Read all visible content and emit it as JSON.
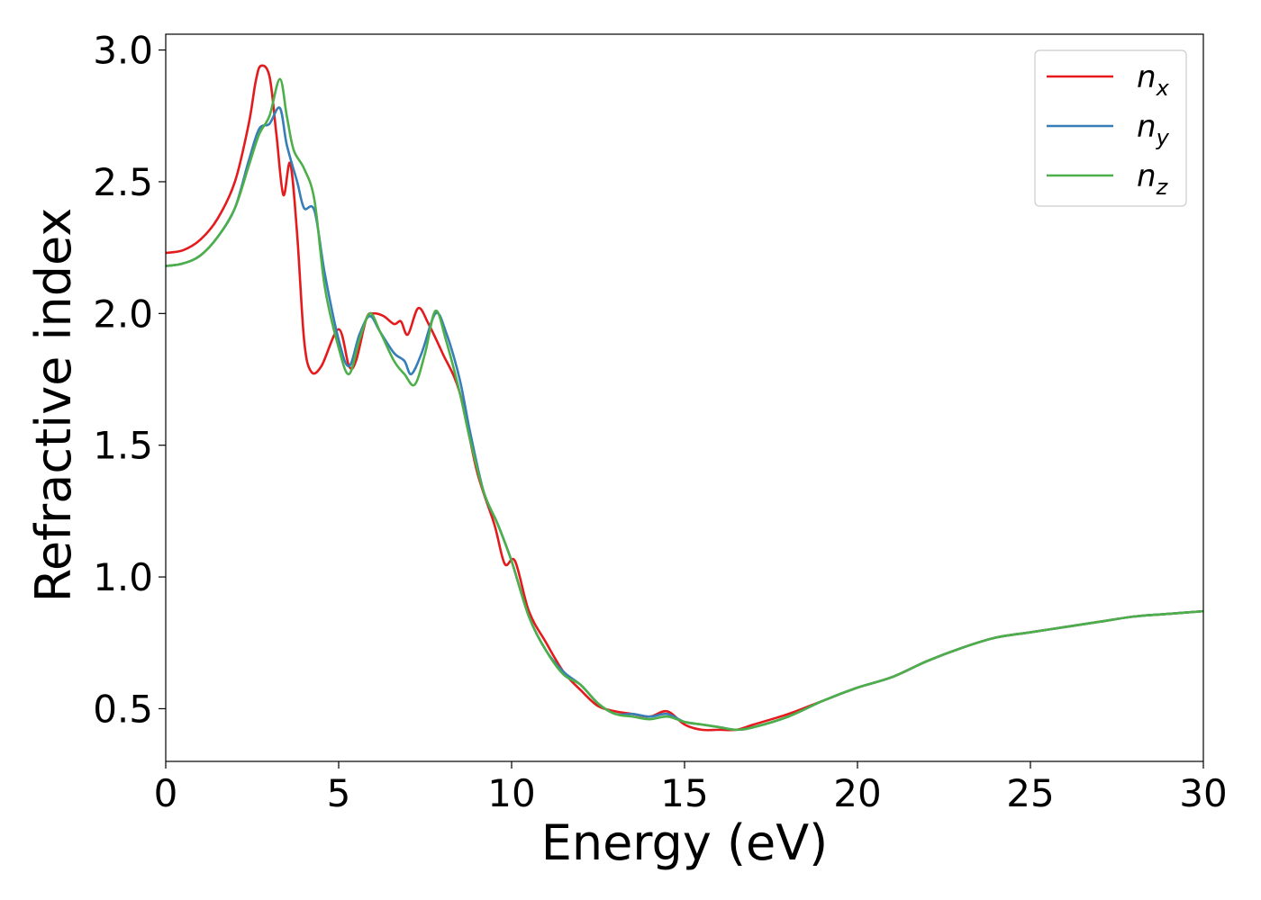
{
  "chart_data": {
    "type": "line",
    "title": "",
    "xlabel": "Energy (eV)",
    "ylabel": "Refractive index",
    "xlim": [
      0,
      30
    ],
    "ylim": [
      0.3,
      3.06
    ],
    "xticks": [
      0,
      5,
      10,
      15,
      20,
      25,
      30
    ],
    "xtick_labels": [
      "0",
      "5",
      "10",
      "15",
      "20",
      "25",
      "30"
    ],
    "yticks": [
      0.5,
      1.0,
      1.5,
      2.0,
      2.5,
      3.0
    ],
    "ytick_labels": [
      "0.5",
      "1.0",
      "1.5",
      "2.0",
      "2.5",
      "3.0"
    ],
    "grid": false,
    "legend_position": "top-right",
    "series": [
      {
        "name": "n_x",
        "label_base": "n",
        "label_sub": "x",
        "color": "#e41a1c",
        "points": [
          [
            0,
            2.23
          ],
          [
            0.5,
            2.24
          ],
          [
            1.0,
            2.28
          ],
          [
            1.5,
            2.36
          ],
          [
            2.0,
            2.5
          ],
          [
            2.4,
            2.72
          ],
          [
            2.6,
            2.88
          ],
          [
            2.75,
            2.94
          ],
          [
            3.0,
            2.9
          ],
          [
            3.2,
            2.68
          ],
          [
            3.4,
            2.45
          ],
          [
            3.6,
            2.57
          ],
          [
            3.8,
            2.3
          ],
          [
            4.0,
            1.9
          ],
          [
            4.2,
            1.78
          ],
          [
            4.5,
            1.8
          ],
          [
            5.0,
            1.94
          ],
          [
            5.3,
            1.8
          ],
          [
            5.5,
            1.82
          ],
          [
            5.8,
            1.98
          ],
          [
            6.0,
            2.0
          ],
          [
            6.3,
            1.99
          ],
          [
            6.6,
            1.96
          ],
          [
            6.8,
            1.97
          ],
          [
            7.0,
            1.92
          ],
          [
            7.3,
            2.02
          ],
          [
            7.6,
            1.96
          ],
          [
            8.0,
            1.85
          ],
          [
            8.5,
            1.7
          ],
          [
            9.0,
            1.4
          ],
          [
            9.5,
            1.2
          ],
          [
            9.8,
            1.05
          ],
          [
            10.1,
            1.06
          ],
          [
            10.5,
            0.87
          ],
          [
            11.0,
            0.75
          ],
          [
            11.5,
            0.64
          ],
          [
            12.0,
            0.57
          ],
          [
            12.5,
            0.51
          ],
          [
            13.0,
            0.49
          ],
          [
            13.5,
            0.48
          ],
          [
            14.0,
            0.47
          ],
          [
            14.5,
            0.49
          ],
          [
            15.0,
            0.44
          ],
          [
            15.5,
            0.42
          ],
          [
            16.0,
            0.42
          ],
          [
            16.5,
            0.42
          ],
          [
            17.0,
            0.44
          ],
          [
            18.0,
            0.48
          ],
          [
            19.0,
            0.53
          ],
          [
            20.0,
            0.58
          ],
          [
            21.0,
            0.62
          ],
          [
            22.0,
            0.68
          ],
          [
            23.0,
            0.73
          ],
          [
            24.0,
            0.77
          ],
          [
            25.0,
            0.79
          ],
          [
            26.0,
            0.81
          ],
          [
            27.0,
            0.83
          ],
          [
            28.0,
            0.85
          ],
          [
            29.0,
            0.86
          ],
          [
            30.0,
            0.87
          ]
        ]
      },
      {
        "name": "n_y",
        "label_base": "n",
        "label_sub": "y",
        "color": "#377eb8",
        "points": [
          [
            0,
            2.18
          ],
          [
            0.5,
            2.19
          ],
          [
            1.0,
            2.22
          ],
          [
            1.5,
            2.29
          ],
          [
            2.0,
            2.4
          ],
          [
            2.4,
            2.58
          ],
          [
            2.7,
            2.7
          ],
          [
            3.0,
            2.72
          ],
          [
            3.3,
            2.78
          ],
          [
            3.5,
            2.64
          ],
          [
            3.8,
            2.5
          ],
          [
            4.0,
            2.4
          ],
          [
            4.3,
            2.39
          ],
          [
            4.6,
            2.15
          ],
          [
            5.0,
            1.9
          ],
          [
            5.3,
            1.8
          ],
          [
            5.6,
            1.92
          ],
          [
            5.9,
            1.99
          ],
          [
            6.2,
            1.93
          ],
          [
            6.6,
            1.85
          ],
          [
            6.9,
            1.82
          ],
          [
            7.1,
            1.77
          ],
          [
            7.4,
            1.85
          ],
          [
            7.8,
            2.0
          ],
          [
            8.1,
            1.93
          ],
          [
            8.5,
            1.75
          ],
          [
            8.8,
            1.55
          ],
          [
            9.2,
            1.32
          ],
          [
            9.6,
            1.2
          ],
          [
            10.0,
            1.06
          ],
          [
            10.5,
            0.85
          ],
          [
            11.0,
            0.72
          ],
          [
            11.5,
            0.64
          ],
          [
            12.0,
            0.59
          ],
          [
            12.5,
            0.52
          ],
          [
            13.0,
            0.48
          ],
          [
            13.5,
            0.48
          ],
          [
            14.0,
            0.47
          ],
          [
            14.5,
            0.48
          ],
          [
            15.0,
            0.45
          ],
          [
            15.5,
            0.44
          ],
          [
            16.0,
            0.43
          ],
          [
            16.5,
            0.42
          ],
          [
            17.0,
            0.43
          ],
          [
            18.0,
            0.47
          ],
          [
            19.0,
            0.53
          ],
          [
            20.0,
            0.58
          ],
          [
            21.0,
            0.62
          ],
          [
            22.0,
            0.68
          ],
          [
            23.0,
            0.73
          ],
          [
            24.0,
            0.77
          ],
          [
            25.0,
            0.79
          ],
          [
            26.0,
            0.81
          ],
          [
            27.0,
            0.83
          ],
          [
            28.0,
            0.85
          ],
          [
            29.0,
            0.86
          ],
          [
            30.0,
            0.87
          ]
        ]
      },
      {
        "name": "n_z",
        "label_base": "n",
        "label_sub": "z",
        "color": "#4daf4a",
        "points": [
          [
            0,
            2.18
          ],
          [
            0.5,
            2.19
          ],
          [
            1.0,
            2.22
          ],
          [
            1.5,
            2.29
          ],
          [
            2.0,
            2.4
          ],
          [
            2.4,
            2.56
          ],
          [
            2.7,
            2.68
          ],
          [
            3.0,
            2.75
          ],
          [
            3.3,
            2.89
          ],
          [
            3.5,
            2.75
          ],
          [
            3.7,
            2.62
          ],
          [
            4.0,
            2.55
          ],
          [
            4.3,
            2.43
          ],
          [
            4.6,
            2.1
          ],
          [
            5.0,
            1.87
          ],
          [
            5.3,
            1.77
          ],
          [
            5.6,
            1.9
          ],
          [
            5.9,
            2.0
          ],
          [
            6.2,
            1.93
          ],
          [
            6.6,
            1.82
          ],
          [
            6.9,
            1.77
          ],
          [
            7.2,
            1.73
          ],
          [
            7.5,
            1.85
          ],
          [
            7.8,
            2.01
          ],
          [
            8.1,
            1.9
          ],
          [
            8.5,
            1.7
          ],
          [
            8.8,
            1.52
          ],
          [
            9.2,
            1.32
          ],
          [
            9.6,
            1.2
          ],
          [
            10.0,
            1.06
          ],
          [
            10.5,
            0.85
          ],
          [
            11.0,
            0.72
          ],
          [
            11.5,
            0.63
          ],
          [
            12.0,
            0.59
          ],
          [
            12.5,
            0.52
          ],
          [
            13.0,
            0.48
          ],
          [
            13.5,
            0.47
          ],
          [
            14.0,
            0.46
          ],
          [
            14.5,
            0.47
          ],
          [
            15.0,
            0.45
          ],
          [
            15.5,
            0.44
          ],
          [
            16.0,
            0.43
          ],
          [
            16.5,
            0.42
          ],
          [
            17.0,
            0.43
          ],
          [
            18.0,
            0.47
          ],
          [
            19.0,
            0.53
          ],
          [
            20.0,
            0.58
          ],
          [
            21.0,
            0.62
          ],
          [
            22.0,
            0.68
          ],
          [
            23.0,
            0.73
          ],
          [
            24.0,
            0.77
          ],
          [
            25.0,
            0.79
          ],
          [
            26.0,
            0.81
          ],
          [
            27.0,
            0.83
          ],
          [
            28.0,
            0.85
          ],
          [
            29.0,
            0.86
          ],
          [
            30.0,
            0.87
          ]
        ]
      }
    ]
  }
}
